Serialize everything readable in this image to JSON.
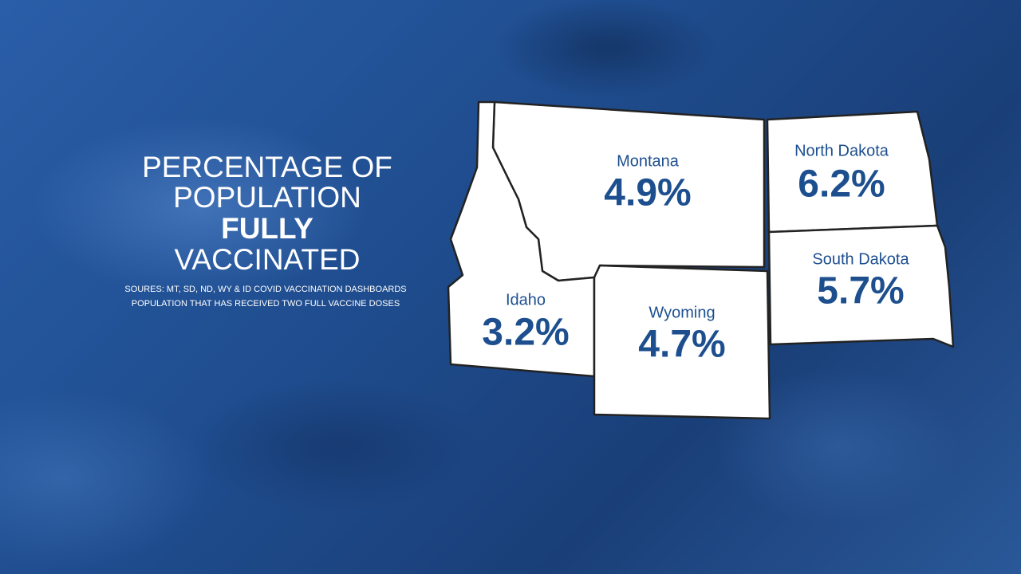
{
  "title": {
    "lines": [
      "PERCENTAGE OF",
      "POPULATION",
      "FULLY",
      "VACCINATED"
    ]
  },
  "sources": [
    "SOURES: MT, SD, ND, WY & ID COVID VACCINATION DASHBOARDS",
    "POPULATION THAT HAS RECEIVED TWO FULL VACCINE DOSES"
  ],
  "states": [
    {
      "name": "Montana",
      "value": "4.9%"
    },
    {
      "name": "North Dakota",
      "value": "6.2%"
    },
    {
      "name": "South Dakota",
      "value": "5.7%"
    },
    {
      "name": "Idaho",
      "value": "3.2%"
    },
    {
      "name": "Wyoming",
      "value": "4.7%"
    }
  ]
}
